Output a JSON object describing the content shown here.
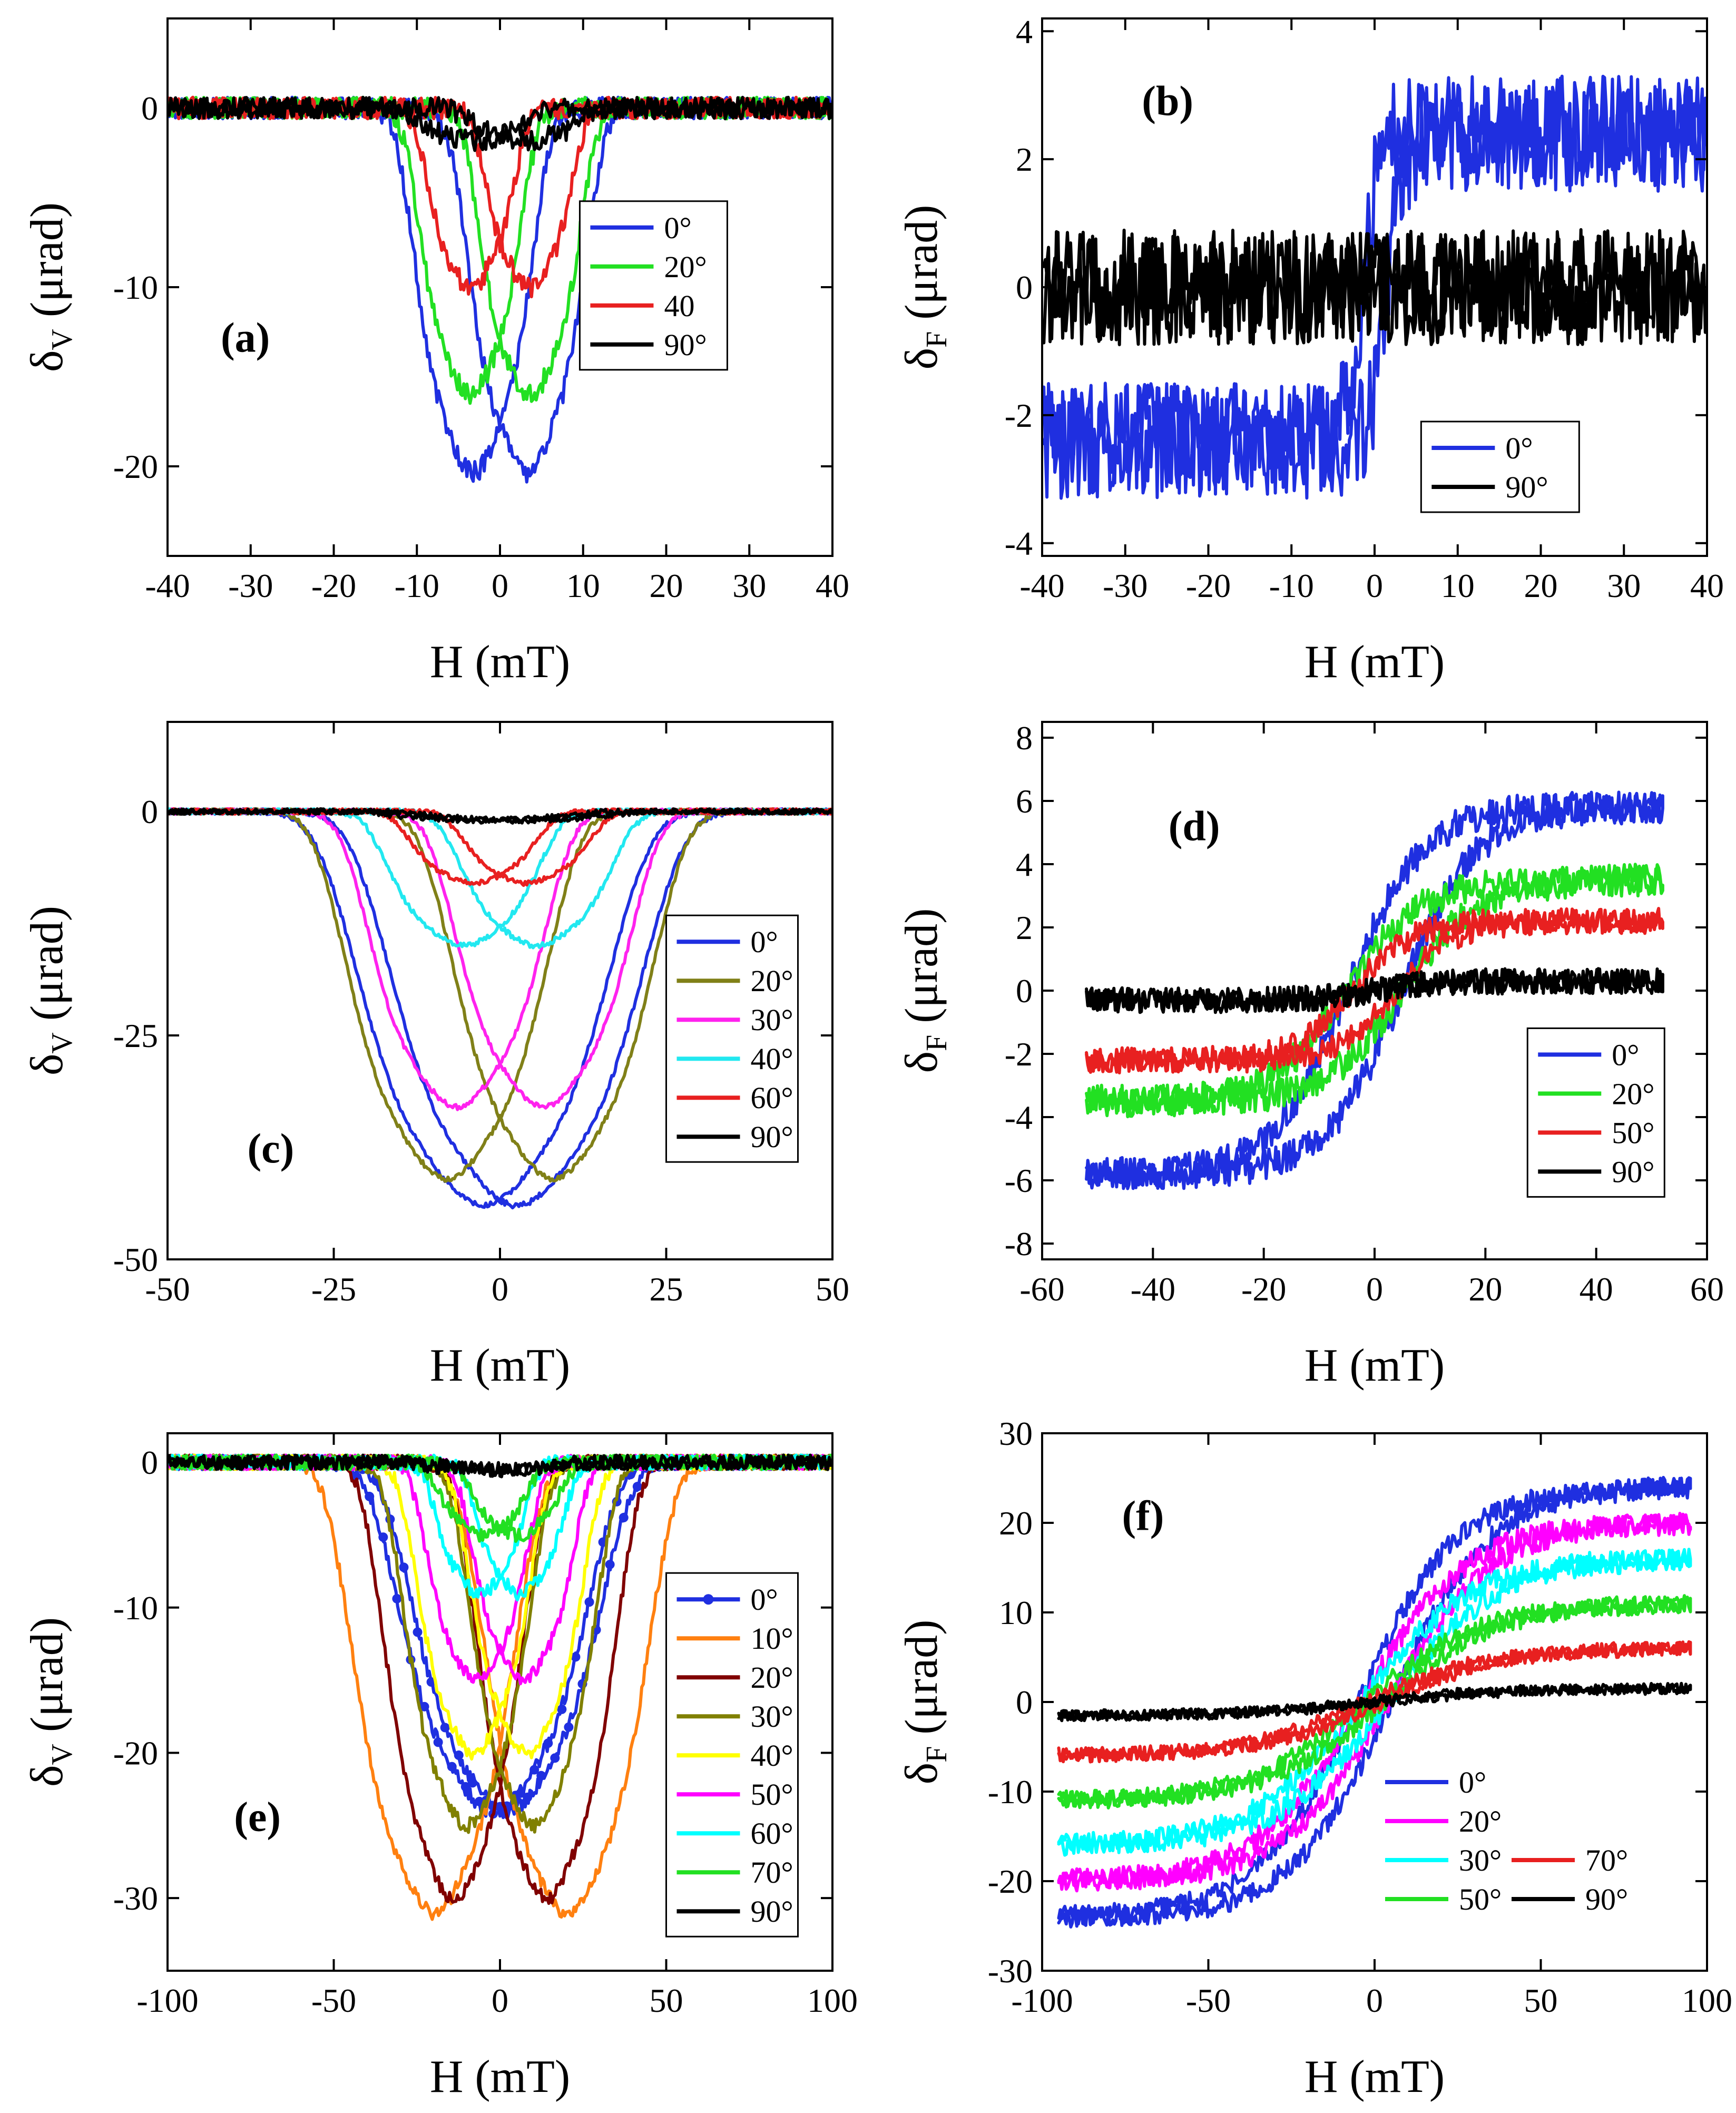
{
  "chart_data": [
    {
      "id": "a",
      "type": "line",
      "panel_label": "(a)",
      "xlabel": "H (mT)",
      "ylabel": "δV (μrad)",
      "ylabel_main": "δ",
      "ylabel_sub": "V",
      "ylabel_rest": " (μrad)",
      "xlim": [
        -40,
        40
      ],
      "ylim": [
        -25,
        5
      ],
      "xticks": [
        -40,
        -30,
        -20,
        -10,
        0,
        10,
        20,
        30,
        40
      ],
      "yticks": [
        -20,
        -10,
        0
      ],
      "legend": {
        "position": "right"
      },
      "series": [
        {
          "name": "0°",
          "color": "#1f2fe0",
          "shape": "dip",
          "depth": -20.3,
          "width": 7.5,
          "split": 3.2,
          "noise": 0.6
        },
        {
          "name": "20°",
          "color": "#22e022",
          "shape": "dip",
          "depth": -16,
          "width": 6.5,
          "split": 3.6,
          "noise": 0.6
        },
        {
          "name": "40",
          "color": "#e82020",
          "shape": "dip",
          "depth": -10,
          "width": 5.5,
          "split": 3.5,
          "noise": 0.6
        },
        {
          "name": "90°",
          "color": "#000000",
          "shape": "dip",
          "depth": -1.8,
          "width": 7,
          "split": 3,
          "noise": 0.6
        }
      ]
    },
    {
      "id": "b",
      "type": "line",
      "panel_label": "(b)",
      "xlabel": "H (mT)",
      "ylabel": "δF (μrad)",
      "ylabel_main": "δ",
      "ylabel_sub": "F",
      "ylabel_rest": " (μrad)",
      "xlim": [
        -40,
        40
      ],
      "ylim": [
        -4.2,
        4.2
      ],
      "xticks": [
        -40,
        -30,
        -20,
        -10,
        0,
        10,
        20,
        30,
        40
      ],
      "yticks": [
        -4,
        -2,
        0,
        2,
        4
      ],
      "legend": {
        "position": "bottom-right"
      },
      "series": [
        {
          "name": "0°",
          "color": "#1f2fe0",
          "shape": "step",
          "sat": 2.4,
          "hc": 1.5,
          "width": 2,
          "noise": 0.9
        },
        {
          "name": "90°",
          "color": "#000000",
          "shape": "step",
          "sat": 0,
          "hc": 0,
          "width": 2,
          "noise": 0.9
        }
      ]
    },
    {
      "id": "c",
      "type": "line",
      "panel_label": "(c)",
      "xlabel": "H (mT)",
      "ylabel": "δV (μrad)",
      "ylabel_main": "δ",
      "ylabel_sub": "V",
      "ylabel_rest": " (μrad)",
      "xlim": [
        -50,
        50
      ],
      "ylim": [
        -50,
        10
      ],
      "xticks": [
        -50,
        -25,
        0,
        25,
        50
      ],
      "yticks": [
        -50,
        -25,
        0
      ],
      "legend": {
        "position": "right"
      },
      "series": [
        {
          "name": "0°",
          "color": "#1f2fe0",
          "shape": "dip",
          "depth": -44,
          "width": 20,
          "split": 2.5,
          "noise": 0.3
        },
        {
          "name": "20°",
          "color": "#808018",
          "shape": "dip",
          "depth": -41,
          "width": 16,
          "split": 8,
          "noise": 0.3
        },
        {
          "name": "30°",
          "color": "#ff22ee",
          "shape": "dip",
          "depth": -33,
          "width": 14,
          "split": 6.5,
          "noise": 0.3
        },
        {
          "name": "40°",
          "color": "#22e8f0",
          "shape": "dip",
          "depth": -15,
          "width": 12,
          "split": 5.5,
          "noise": 0.3
        },
        {
          "name": "60°",
          "color": "#e82020",
          "shape": "dip",
          "depth": -8,
          "width": 10,
          "split": 4,
          "noise": 0.3
        },
        {
          "name": "90°",
          "color": "#000000",
          "shape": "dip",
          "depth": -1,
          "width": 14,
          "split": 3,
          "noise": 0.3
        }
      ]
    },
    {
      "id": "d",
      "type": "line",
      "panel_label": "(d)",
      "xlabel": "H (mT)",
      "ylabel": "δF (μrad)",
      "ylabel_main": "δ",
      "ylabel_sub": "F",
      "ylabel_rest": " (μrad)",
      "xlim": [
        -60,
        60
      ],
      "ylim": [
        -8.5,
        8.5
      ],
      "xticks": [
        -60,
        -40,
        -20,
        0,
        20,
        40,
        60
      ],
      "yticks": [
        -8,
        -6,
        -4,
        -2,
        0,
        2,
        4,
        6,
        8
      ],
      "legend": {
        "position": "bottom-right"
      },
      "series": [
        {
          "name": "0°",
          "color": "#1f2fe0",
          "shape": "loop",
          "sat": 5.8,
          "hc": 5,
          "width": 18,
          "noise": 0.5,
          "xmax": 52
        },
        {
          "name": "20°",
          "color": "#22e022",
          "shape": "loop",
          "sat": 3.5,
          "hc": 5,
          "width": 18,
          "noise": 0.5,
          "xmax": 52
        },
        {
          "name": "50°",
          "color": "#e82020",
          "shape": "loop",
          "sat": 2.2,
          "hc": 4,
          "width": 14,
          "noise": 0.4,
          "xmax": 52
        },
        {
          "name": "90°",
          "color": "#000000",
          "shape": "loop",
          "sat": 0.3,
          "hc": 0,
          "width": 14,
          "noise": 0.4,
          "xmax": 52
        }
      ]
    },
    {
      "id": "e",
      "type": "line",
      "panel_label": "(e)",
      "xlabel": "H (mT)",
      "ylabel": "δV (μrad)",
      "ylabel_main": "δ",
      "ylabel_sub": "V",
      "ylabel_rest": " (μrad)",
      "xlim": [
        -100,
        100
      ],
      "ylim": [
        -35,
        2
      ],
      "xticks": [
        -100,
        -50,
        0,
        50,
        100
      ],
      "yticks": [
        -30,
        -20,
        -10,
        0
      ],
      "legend": {
        "position": "right"
      },
      "series": [
        {
          "name": "0°",
          "color": "#1f2fe0",
          "shape": "dip",
          "depth": -24,
          "width": 30,
          "split": 2,
          "noise": 0.5,
          "markers": true
        },
        {
          "name": "10°",
          "color": "#ff8010",
          "shape": "dip",
          "depth": -31,
          "width": 26,
          "split": 20,
          "noise": 0.5
        },
        {
          "name": "20°",
          "color": "#800000",
          "shape": "dip",
          "depth": -30,
          "width": 22,
          "split": 14,
          "noise": 0.5
        },
        {
          "name": "30°",
          "color": "#808000",
          "shape": "dip",
          "depth": -25,
          "width": 20,
          "split": 10,
          "noise": 0.5
        },
        {
          "name": "40°",
          "color": "#ffff00",
          "shape": "dip",
          "depth": -20,
          "width": 18,
          "split": 8,
          "noise": 0.5
        },
        {
          "name": "50°",
          "color": "#ff00ff",
          "shape": "dip",
          "depth": -15,
          "width": 16,
          "split": 7,
          "noise": 0.5
        },
        {
          "name": "60°",
          "color": "#00ffff",
          "shape": "dip",
          "depth": -9,
          "width": 14,
          "split": 6,
          "noise": 0.5
        },
        {
          "name": "70°",
          "color": "#22e022",
          "shape": "dip",
          "depth": -5,
          "width": 14,
          "split": 5,
          "noise": 0.5
        },
        {
          "name": "90°",
          "color": "#000000",
          "shape": "dip",
          "depth": -0.5,
          "width": 20,
          "split": 3,
          "noise": 0.5
        }
      ]
    },
    {
      "id": "f",
      "type": "line",
      "panel_label": "(f)",
      "xlabel": "H (mT)",
      "ylabel": "δF (μrad)",
      "ylabel_main": "δ",
      "ylabel_sub": "F",
      "ylabel_rest": " (μrad)",
      "xlim": [
        -100,
        100
      ],
      "ylim": [
        -30,
        30
      ],
      "xticks": [
        -100,
        -50,
        0,
        50,
        100
      ],
      "yticks": [
        -30,
        -20,
        -10,
        0,
        10,
        20,
        30
      ],
      "legend": {
        "position": "bottom-right",
        "columns": 2
      },
      "series": [
        {
          "name": "0°",
          "color": "#1f2fe0",
          "shape": "loop",
          "sat": 24,
          "hc": 5,
          "width": 40,
          "noise": 1.2,
          "xmax": 95
        },
        {
          "name": "20°",
          "color": "#ff00ff",
          "shape": "loop",
          "sat": 20,
          "hc": 4,
          "width": 42,
          "noise": 1.2,
          "xmax": 95
        },
        {
          "name": "30°",
          "color": "#00ffff",
          "shape": "loop",
          "sat": 16,
          "hc": 4,
          "width": 44,
          "noise": 1.2,
          "xmax": 95
        },
        {
          "name": "50°",
          "color": "#22e022",
          "shape": "loop",
          "sat": 11,
          "hc": 3,
          "width": 46,
          "noise": 1.0,
          "xmax": 95
        },
        {
          "name": "70°",
          "color": "#e82020",
          "shape": "loop",
          "sat": 6,
          "hc": 3,
          "width": 48,
          "noise": 0.8,
          "xmax": 95
        },
        {
          "name": "90°",
          "color": "#000000",
          "shape": "loop",
          "sat": 1.5,
          "hc": 2,
          "width": 50,
          "noise": 0.6,
          "xmax": 95
        }
      ]
    }
  ]
}
